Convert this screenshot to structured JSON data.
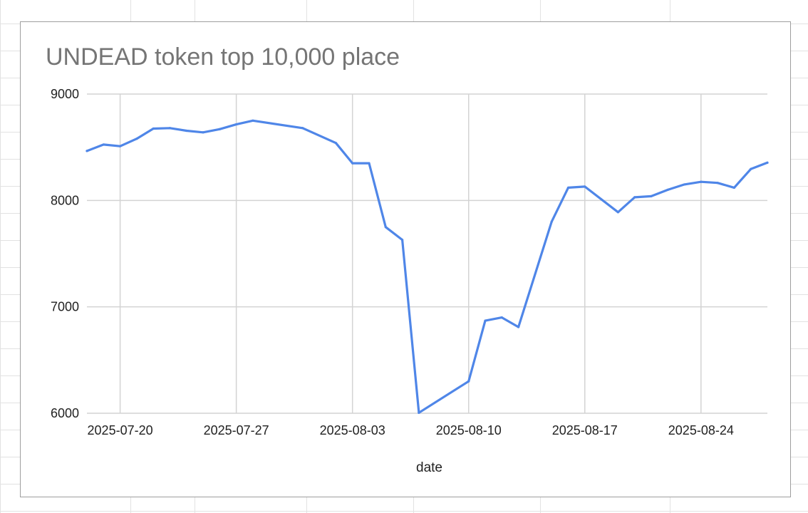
{
  "chart_data": {
    "type": "line",
    "title": "UNDEAD token top 10,000 place",
    "xlabel": "date",
    "ylabel": "",
    "ylim": [
      6000,
      9000
    ],
    "yticks": [
      {
        "value": 6000,
        "label": "6000"
      },
      {
        "value": 7000,
        "label": "7000"
      },
      {
        "value": 8000,
        "label": "8000"
      },
      {
        "value": 9000,
        "label": "9000"
      }
    ],
    "xlim": [
      "2025-07-18",
      "2025-08-28"
    ],
    "xticks": [
      {
        "value": "2025-07-20",
        "label": "2025-07-20"
      },
      {
        "value": "2025-07-27",
        "label": "2025-07-27"
      },
      {
        "value": "2025-08-03",
        "label": "2025-08-03"
      },
      {
        "value": "2025-08-10",
        "label": "2025-08-10"
      },
      {
        "value": "2025-08-17",
        "label": "2025-08-17"
      },
      {
        "value": "2025-08-24",
        "label": "2025-08-24"
      }
    ],
    "grid": true,
    "legend": "none",
    "series": [
      {
        "color": "#4f86e8",
        "points": [
          {
            "x": "2025-07-18",
            "y": 8465
          },
          {
            "x": "2025-07-19",
            "y": 8525
          },
          {
            "x": "2025-07-20",
            "y": 8510
          },
          {
            "x": "2025-07-21",
            "y": 8580
          },
          {
            "x": "2025-07-22",
            "y": 8675
          },
          {
            "x": "2025-07-23",
            "y": 8680
          },
          {
            "x": "2025-07-24",
            "y": 8655
          },
          {
            "x": "2025-07-25",
            "y": 8640
          },
          {
            "x": "2025-07-26",
            "y": 8670
          },
          {
            "x": "2025-07-27",
            "y": 8715
          },
          {
            "x": "2025-07-28",
            "y": 8750
          },
          {
            "x": "2025-07-31",
            "y": 8680
          },
          {
            "x": "2025-08-02",
            "y": 8540
          },
          {
            "x": "2025-08-03",
            "y": 8350
          },
          {
            "x": "2025-08-04",
            "y": 8350
          },
          {
            "x": "2025-08-05",
            "y": 7750
          },
          {
            "x": "2025-08-06",
            "y": 7630
          },
          {
            "x": "2025-08-07",
            "y": 6005
          },
          {
            "x": "2025-08-10",
            "y": 6300
          },
          {
            "x": "2025-08-11",
            "y": 6870
          },
          {
            "x": "2025-08-12",
            "y": 6900
          },
          {
            "x": "2025-08-13",
            "y": 6810
          },
          {
            "x": "2025-08-15",
            "y": 7800
          },
          {
            "x": "2025-08-16",
            "y": 8120
          },
          {
            "x": "2025-08-17",
            "y": 8130
          },
          {
            "x": "2025-08-19",
            "y": 7890
          },
          {
            "x": "2025-08-20",
            "y": 8030
          },
          {
            "x": "2025-08-21",
            "y": 8040
          },
          {
            "x": "2025-08-22",
            "y": 8100
          },
          {
            "x": "2025-08-23",
            "y": 8150
          },
          {
            "x": "2025-08-24",
            "y": 8175
          },
          {
            "x": "2025-08-25",
            "y": 8165
          },
          {
            "x": "2025-08-26",
            "y": 8120
          },
          {
            "x": "2025-08-27",
            "y": 8295
          },
          {
            "x": "2025-08-28",
            "y": 8355
          }
        ]
      }
    ],
    "colors": {
      "line": "#4f86e8",
      "grid": "#d3d3d3",
      "title": "#757575",
      "text": "#222222"
    }
  }
}
